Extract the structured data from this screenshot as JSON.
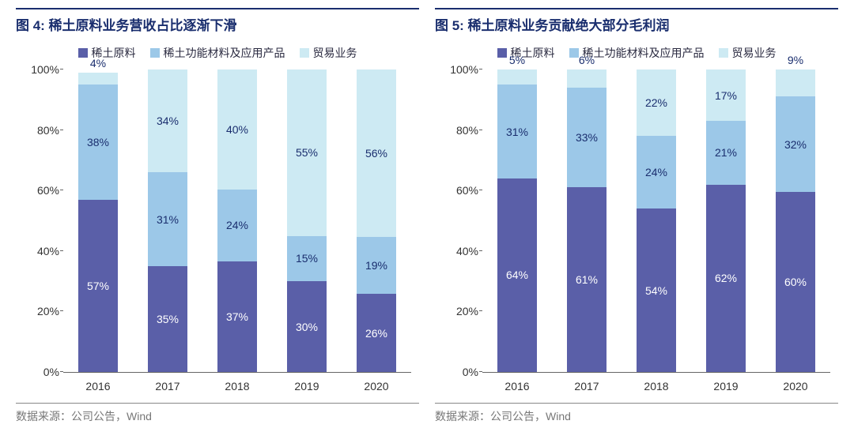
{
  "colors": {
    "series1": "#5a5fa8",
    "series2": "#9cc8e8",
    "series3": "#cdeaf3",
    "label": "#1a2e6e",
    "axis": "#333333"
  },
  "legend_labels": {
    "s1": "稀土原料",
    "s2": "稀土功能材料及应用产品",
    "s3": "贸易业务"
  },
  "chart_left": {
    "title": "图 4:  稀土原料业务营收占比逐渐下滑",
    "type": "stacked-bar",
    "ylim": [
      0,
      100
    ],
    "ytick_step": 20,
    "y_suffix": "%",
    "categories": [
      "2016",
      "2017",
      "2018",
      "2019",
      "2020"
    ],
    "series": [
      {
        "key": "s1",
        "values": [
          57,
          35,
          37,
          30,
          26
        ]
      },
      {
        "key": "s2",
        "values": [
          38,
          31,
          24,
          15,
          19
        ]
      },
      {
        "key": "s3",
        "values": [
          4,
          34,
          40,
          55,
          56
        ]
      }
    ],
    "totals": [
      99,
      100,
      101,
      100,
      101
    ],
    "source": "数据来源：公司公告，Wind"
  },
  "chart_right": {
    "title": "图 5:  稀土原料业务贡献绝大部分毛利润",
    "type": "stacked-bar",
    "ylim": [
      0,
      100
    ],
    "ytick_step": 20,
    "y_suffix": "%",
    "categories": [
      "2016",
      "2017",
      "2018",
      "2019",
      "2020"
    ],
    "series": [
      {
        "key": "s1",
        "values": [
          64,
          61,
          54,
          62,
          60
        ]
      },
      {
        "key": "s2",
        "values": [
          31,
          33,
          24,
          21,
          32
        ]
      },
      {
        "key": "s3",
        "values": [
          5,
          6,
          22,
          17,
          9
        ]
      }
    ],
    "totals": [
      100,
      100,
      100,
      100,
      101
    ],
    "source": "数据来源：公司公告，Wind"
  }
}
